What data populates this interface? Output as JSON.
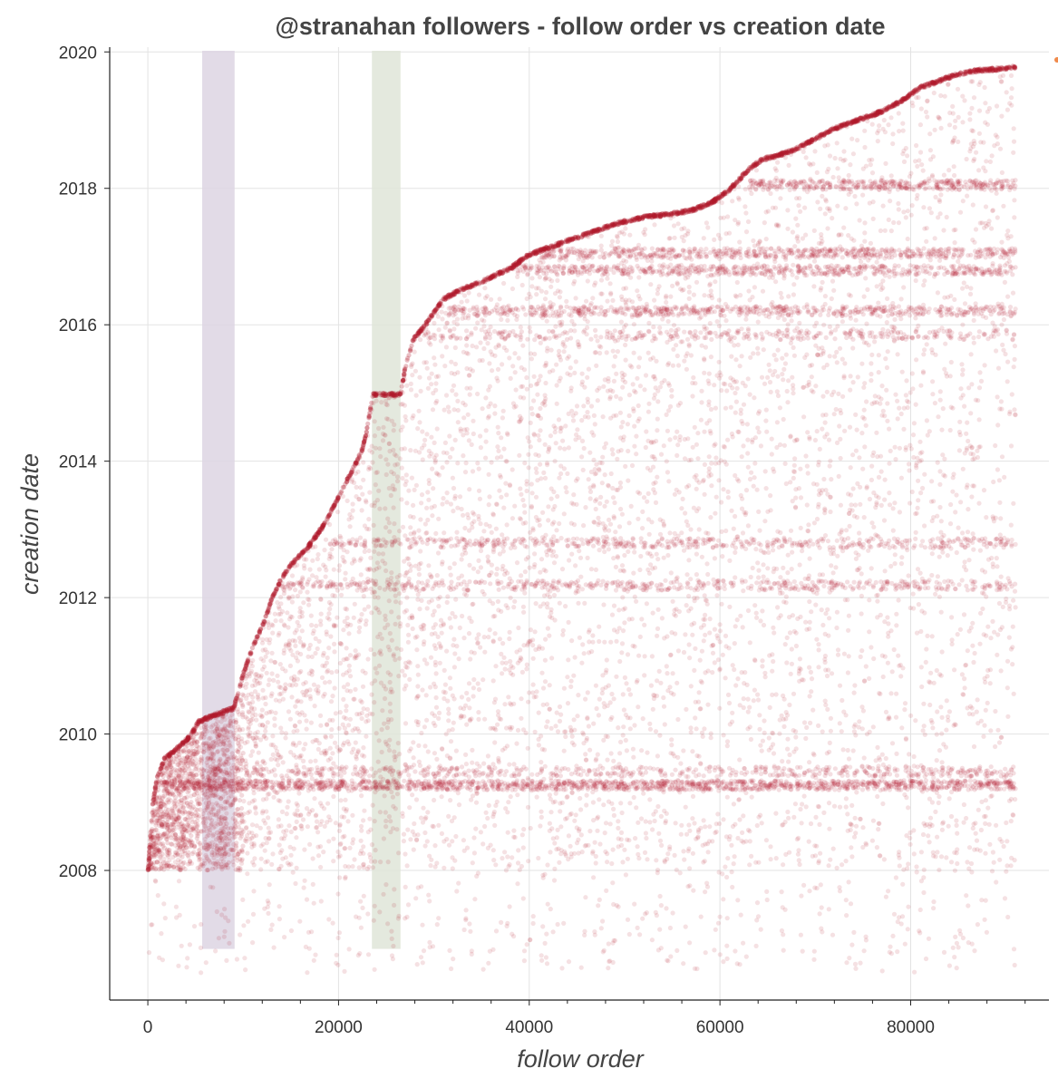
{
  "chart_data": {
    "type": "scatter",
    "title": "@stranahan followers - follow order vs creation date",
    "xlabel": "follow order",
    "ylabel": "creation date",
    "xlim": [
      -4000,
      94500
    ],
    "ylim": [
      2006.1,
      2020.07
    ],
    "x_ticks": [
      0,
      20000,
      40000,
      60000,
      80000
    ],
    "x_tick_labels": [
      "0",
      "20000",
      "40000",
      "60000",
      "80000"
    ],
    "y_ticks": [
      2008,
      2010,
      2012,
      2014,
      2016,
      2018,
      2020
    ],
    "y_tick_labels": [
      "2008",
      "2010",
      "2012",
      "2014",
      "2016",
      "2018",
      "2020"
    ],
    "x_minor_step": 4000,
    "grid": true,
    "point_color": "#b0182a",
    "highlight_bands": [
      {
        "x0": 5700,
        "x1": 9100,
        "color": "#ddd5e3"
      },
      {
        "x0": 23500,
        "x1": 26500,
        "color": "#dfe5d8"
      }
    ],
    "frontier": [
      [
        0,
        2008.0
      ],
      [
        500,
        2009.0
      ],
      [
        1000,
        2009.4
      ],
      [
        1700,
        2009.65
      ],
      [
        3000,
        2009.8
      ],
      [
        4500,
        2010.0
      ],
      [
        5300,
        2010.2
      ],
      [
        7000,
        2010.3
      ],
      [
        9000,
        2010.4
      ],
      [
        10000,
        2010.9
      ],
      [
        11000,
        2011.3
      ],
      [
        12000,
        2011.6
      ],
      [
        13000,
        2012.0
      ],
      [
        14000,
        2012.3
      ],
      [
        15000,
        2012.5
      ],
      [
        17000,
        2012.8
      ],
      [
        18500,
        2013.1
      ],
      [
        20000,
        2013.5
      ],
      [
        21500,
        2013.9
      ],
      [
        22500,
        2014.2
      ],
      [
        23000,
        2014.5
      ],
      [
        23600,
        2015.0
      ],
      [
        26500,
        2015.0
      ],
      [
        27000,
        2015.4
      ],
      [
        27800,
        2015.8
      ],
      [
        29000,
        2016.0
      ],
      [
        30000,
        2016.2
      ],
      [
        31000,
        2016.4
      ],
      [
        33000,
        2016.55
      ],
      [
        35000,
        2016.65
      ],
      [
        38000,
        2016.85
      ],
      [
        40000,
        2017.05
      ],
      [
        43000,
        2017.2
      ],
      [
        46000,
        2017.35
      ],
      [
        49000,
        2017.5
      ],
      [
        52000,
        2017.6
      ],
      [
        55000,
        2017.65
      ],
      [
        57000,
        2017.7
      ],
      [
        59000,
        2017.8
      ],
      [
        61000,
        2018.0
      ],
      [
        63000,
        2018.3
      ],
      [
        64500,
        2018.45
      ],
      [
        66000,
        2018.5
      ],
      [
        68000,
        2018.6
      ],
      [
        70000,
        2018.75
      ],
      [
        72000,
        2018.9
      ],
      [
        75000,
        2019.05
      ],
      [
        77000,
        2019.15
      ],
      [
        79000,
        2019.3
      ],
      [
        81000,
        2019.5
      ],
      [
        83000,
        2019.6
      ],
      [
        85000,
        2019.7
      ],
      [
        87000,
        2019.75
      ],
      [
        89000,
        2019.77
      ],
      [
        91000,
        2019.8
      ]
    ],
    "dense_bands": [
      {
        "year": 2009.25,
        "x0": 1500,
        "x1": 91000,
        "density": 0.16
      },
      {
        "year": 2009.45,
        "x0": 7000,
        "x1": 91000,
        "density": 0.05
      },
      {
        "year": 2012.18,
        "x0": 14000,
        "x1": 91000,
        "density": 0.05
      },
      {
        "year": 2012.8,
        "x0": 19000,
        "x1": 91000,
        "density": 0.05
      },
      {
        "year": 2015.85,
        "x0": 28000,
        "x1": 91000,
        "density": 0.03
      },
      {
        "year": 2016.2,
        "x0": 31000,
        "x1": 91000,
        "density": 0.06
      },
      {
        "year": 2016.8,
        "x0": 38000,
        "x1": 91000,
        "density": 0.06
      },
      {
        "year": 2017.05,
        "x0": 41000,
        "x1": 91000,
        "density": 0.06
      },
      {
        "year": 2018.05,
        "x0": 63000,
        "x1": 91000,
        "density": 0.04
      }
    ]
  }
}
